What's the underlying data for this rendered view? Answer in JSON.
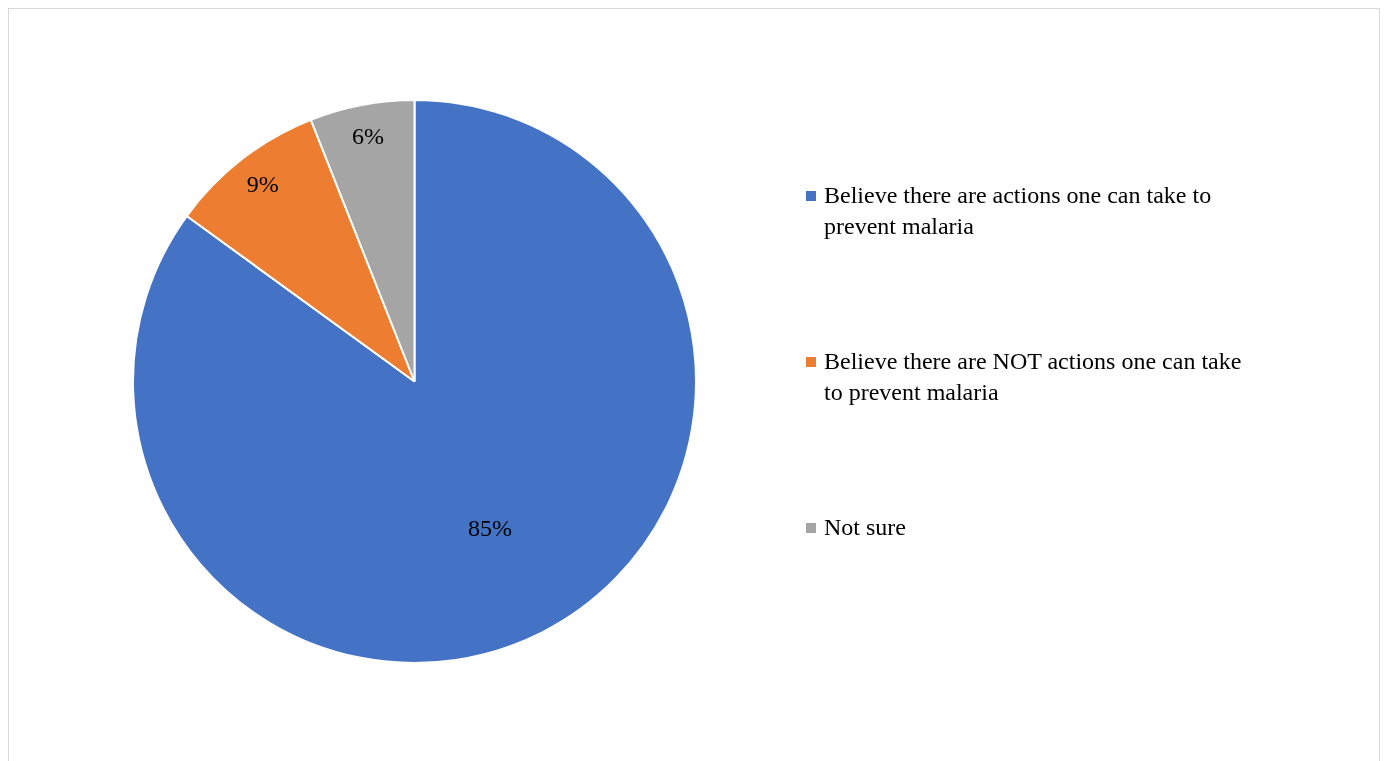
{
  "chart_data": {
    "type": "pie",
    "categories": [
      "Believe there are actions one can take to prevent malaria",
      "Believe there are NOT actions one can take to prevent malaria",
      "Not sure"
    ],
    "values": [
      85,
      9,
      6
    ],
    "colors": [
      "#4472c4",
      "#ed7d31",
      "#a5a5a5"
    ],
    "value_labels": [
      "85%",
      "9%",
      "6%"
    ],
    "legend": "right"
  }
}
